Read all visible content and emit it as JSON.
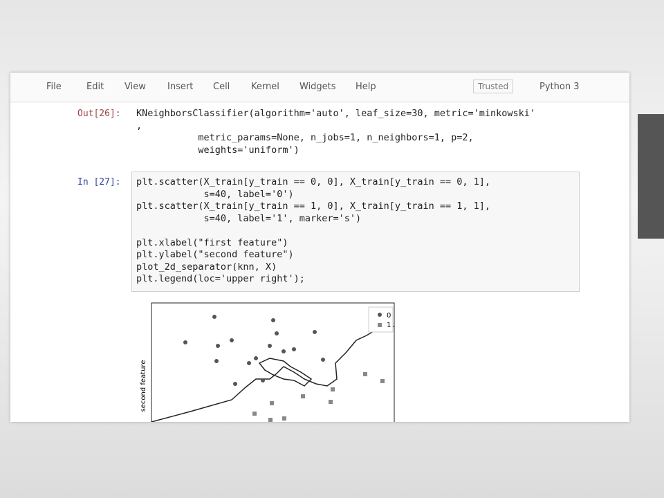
{
  "menu": [
    "File",
    "Edit",
    "View",
    "Insert",
    "Cell",
    "Kernel",
    "Widgets",
    "Help"
  ],
  "status": {
    "trusted": "Trusted",
    "kernel": "Python 3"
  },
  "cells": [
    {
      "prompt": "Out[26]:",
      "lines": [
        "KNeighborsClassifier(algorithm='auto', leaf_size=30, metric='minkowski'",
        ",",
        "           metric_params=None, n_jobs=1, n_neighbors=1, p=2,",
        "           weights='uniform')"
      ]
    },
    {
      "prompt": "In [27]:",
      "lines": [
        "plt.scatter(X_train[y_train == 0, 0], X_train[y_train == 0, 1],",
        "            s=40, label='0')",
        "plt.scatter(X_train[y_train == 1, 0], X_train[y_train == 1, 1],",
        "            s=40, label='1', marker='s')",
        "",
        "plt.xlabel(\"first feature\")",
        "plt.ylabel(\"second feature\")",
        "plot_2d_separator(knn, X)",
        "plt.legend(loc='upper right');"
      ]
    }
  ],
  "plot": {
    "ylabel": "second feature",
    "legend": [
      "0",
      "1"
    ]
  }
}
